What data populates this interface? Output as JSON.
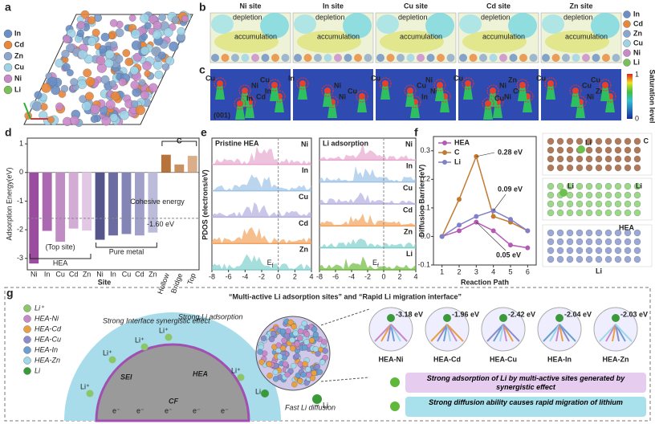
{
  "figure": {
    "a": {
      "label": "a",
      "legend": [
        {
          "name": "In",
          "color": "#6a8fc4"
        },
        {
          "name": "Cd",
          "color": "#e8873a"
        },
        {
          "name": "Zn",
          "color": "#8aa6cc"
        },
        {
          "name": "Cu",
          "color": "#9ed3e6"
        },
        {
          "name": "Ni",
          "color": "#c889c8"
        },
        {
          "name": "Li",
          "color": "#79c05a"
        }
      ]
    },
    "b": {
      "label": "b",
      "depletion": "depletion",
      "accumulation": "accumulation",
      "sites": [
        {
          "name": "Ni site",
          "color": "#b05aa8"
        },
        {
          "name": "In site",
          "color": "#5f8fc0"
        },
        {
          "name": "Cu site",
          "color": "#7c7cc4"
        },
        {
          "name": "Cd site",
          "color": "#d08030"
        },
        {
          "name": "Zn site",
          "color": "#3f9f9f"
        }
      ]
    },
    "c": {
      "label": "c",
      "facet": "(001)",
      "colorbar_title": "Saturation level",
      "colorbar_max": "1",
      "colorbar_min": "0",
      "atoms": [
        [
          "Cu",
          "Cd",
          "In",
          "Ni",
          "Cu",
          "In"
        ],
        [
          "In",
          "Ni",
          "Cu",
          "Ni"
        ],
        [
          "Cu",
          "In",
          "Ni",
          "Cu",
          "Ni"
        ],
        [
          "Cu",
          "Ni",
          "Cd",
          "Ni",
          "Zn",
          "Cu"
        ],
        [
          "Cu",
          "Ni",
          "Zn",
          "Cu",
          "Cu"
        ]
      ]
    },
    "e": {
      "label": "e",
      "ylabel": "PDOS (electrons/eV)",
      "left_title": "Pristine HEA",
      "right_title": "Li adsorption",
      "ef": {
        "base": "E",
        "sub": "f"
      },
      "xlim": [
        -8,
        4
      ],
      "xticks": [
        -8,
        -6,
        -4,
        -2,
        0,
        2,
        4
      ],
      "left_strips": [
        {
          "name": "Ni",
          "color": "#e7a6cf"
        },
        {
          "name": "In",
          "color": "#9cc3e6"
        },
        {
          "name": "Cu",
          "color": "#b3aee0"
        },
        {
          "name": "Cd",
          "color": "#f2a25c"
        },
        {
          "name": "Zn",
          "color": "#7fd0cc"
        }
      ],
      "right_strips": [
        {
          "name": "Ni",
          "color": "#e7a6cf"
        },
        {
          "name": "In",
          "color": "#9cc3e6"
        },
        {
          "name": "Cu",
          "color": "#b3aee0"
        },
        {
          "name": "Cd",
          "color": "#f2a25c"
        },
        {
          "name": "Zn",
          "color": "#7fd0cc"
        },
        {
          "name": "Li",
          "color": "#6dbb3c"
        }
      ]
    },
    "f_models": [
      "C",
      "Li",
      "HEA",
      "Li"
    ],
    "g": {
      "label": "g",
      "title": "“Multi-active Li adsorption sites” and “Rapid Li migration interface”",
      "legend": [
        {
          "name": "Li⁺",
          "color": "#8cc56a"
        },
        {
          "name": "HEA-Ni",
          "color": "#c889c8"
        },
        {
          "name": "HEA-Cd",
          "color": "#e8a040"
        },
        {
          "name": "HEA-Cu",
          "color": "#8c8ccc"
        },
        {
          "name": "HEA-In",
          "color": "#6a9fd0"
        },
        {
          "name": "HEA-Zn",
          "color": "#9fd8e8"
        },
        {
          "name": "Li",
          "color": "#3a9a3a"
        }
      ],
      "interface": "Strong Interface synergistic effect",
      "adsorption": "Strong Li adsorption",
      "sei": "SEI",
      "hea": "HEA",
      "cf": "CF",
      "li_ion": "Li⁺",
      "li": "Li",
      "electron": "e⁻",
      "diffusion": "Fast Li diffusion",
      "models": [
        {
          "name": "HEA-Ni",
          "energy": "-3.18 eV"
        },
        {
          "name": "HEA-Cd",
          "energy": "-1.96 eV"
        },
        {
          "name": "HEA-Cu",
          "energy": "-2.42 eV"
        },
        {
          "name": "HEA-In",
          "energy": "-2.04 eV"
        },
        {
          "name": "HEA-Zn",
          "energy": "-2.03 eV"
        }
      ],
      "boxes": [
        {
          "text": "Strong adsorption of Li by multi-active sites generated by synergistic effect",
          "color": "#e6cdf0"
        },
        {
          "text": "Strong diffusion ability causes rapid migration of lithium",
          "color": "#a8e0ec"
        }
      ]
    }
  },
  "chart_data": [
    {
      "type": "bar",
      "letter": "d",
      "ylabel": "Adsorption Energy(eV)",
      "xlabel": "Site",
      "categories": [
        "Ni",
        "In",
        "Cu",
        "Cd",
        "Zn",
        "Ni",
        "In",
        "Cu",
        "Cd",
        "Zn",
        "Hollow",
        "Bridge",
        "Top"
      ],
      "values": [
        -3.18,
        -2.04,
        -2.42,
        -1.96,
        -2.03,
        -2.35,
        -2.2,
        -2.15,
        -2.2,
        -2.1,
        0.62,
        0.28,
        0.58
      ],
      "colors": [
        "#9a4c9e",
        "#ad68b2",
        "#c08cc4",
        "#d2acd5",
        "#e2c8e4",
        "#55558c",
        "#6c6ca2",
        "#8484b6",
        "#a0a0c8",
        "#bcbcda",
        "#b8733a",
        "#c99060",
        "#d9ae88"
      ],
      "ylim": [
        -3.4,
        1.2
      ],
      "yticks": [
        -3,
        -2,
        -1,
        0,
        1
      ],
      "groups": [
        {
          "name": "HEA",
          "note": "(Top site)"
        },
        {
          "name": "Pure metal"
        },
        {
          "name": "C"
        }
      ],
      "reference": {
        "label": "Cohesive energy",
        "value": -1.6,
        "value_label": "-1.60 eV"
      }
    },
    {
      "type": "line",
      "letter": "f",
      "xlabel": "Reaction Path",
      "ylabel": "Diffusion Barrier (eV)",
      "x": [
        1,
        2,
        3,
        4,
        5,
        6
      ],
      "xlim": [
        0.5,
        6.5
      ],
      "xticks": [
        1,
        2,
        3,
        4,
        5,
        6
      ],
      "ylim": [
        -0.1,
        0.35
      ],
      "yticks": [
        -0.1,
        {
          "value": 0,
          "label": "0.0"
        },
        0.1,
        0.2,
        0.3
      ],
      "series": [
        {
          "name": "HEA",
          "color": "#b45ab4",
          "values": [
            0,
            0.02,
            0.05,
            0.02,
            -0.03,
            -0.04
          ]
        },
        {
          "name": "C",
          "color": "#c27a30",
          "values": [
            0,
            0.13,
            0.28,
            0.07,
            0.05,
            0.02
          ]
        },
        {
          "name": "Li",
          "color": "#8080c8",
          "values": [
            0,
            0.04,
            0.07,
            0.09,
            0.06,
            0.02
          ]
        }
      ],
      "annotations": [
        "0.28 eV",
        "0.09 eV",
        "0.05 eV"
      ]
    }
  ]
}
